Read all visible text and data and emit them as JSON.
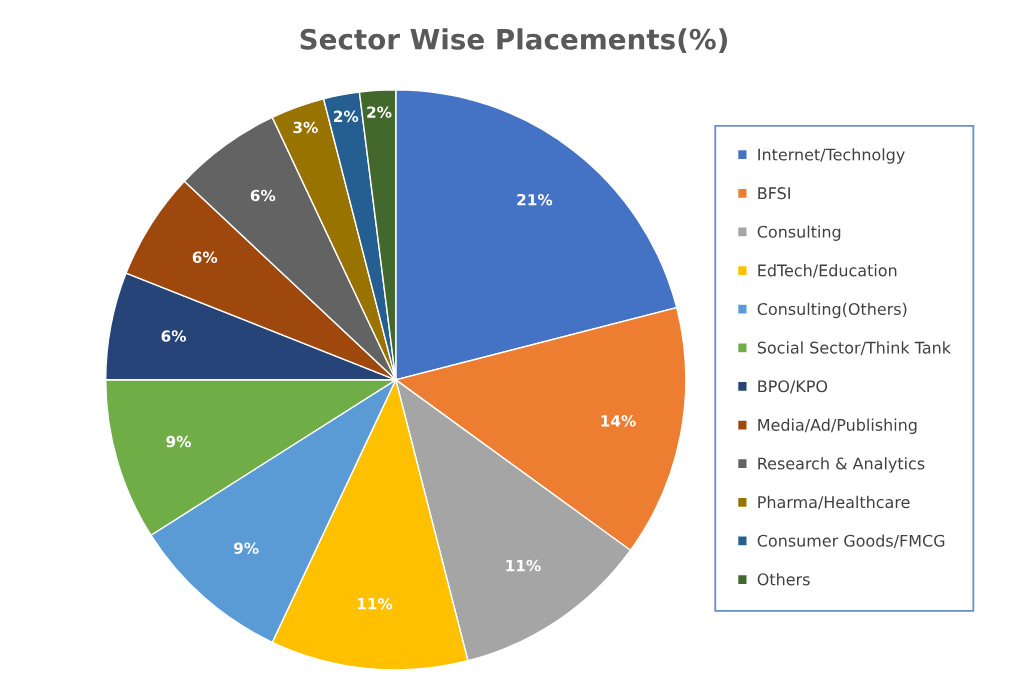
{
  "chart_data": {
    "type": "pie",
    "title": "Sector Wise Placements(%)",
    "categories": [
      "Internet/Technolgy",
      "BFSI",
      "Consulting",
      "EdTech/Education",
      "Consulting(Others)",
      "Social Sector/Think Tank",
      "BPO/KPO",
      "Media/Ad/Publishing",
      "Research & Analytics",
      "Pharma/Healthcare",
      "Consumer Goods/FMCG",
      "Others"
    ],
    "values": [
      21,
      14,
      11,
      11,
      9,
      9,
      6,
      6,
      6,
      3,
      2,
      2
    ],
    "colors": [
      "#4472c4",
      "#ed7d31",
      "#a5a5a5",
      "#ffc000",
      "#5b9bd5",
      "#70ad47",
      "#264478",
      "#9e480e",
      "#636363",
      "#997300",
      "#255e91",
      "#43682b"
    ],
    "value_labels": [
      "21%",
      "14%",
      "11%",
      "11%",
      "9%",
      "9%",
      "6%",
      "6%",
      "6%",
      "3%",
      "2%",
      "2%"
    ],
    "legend": "right"
  }
}
